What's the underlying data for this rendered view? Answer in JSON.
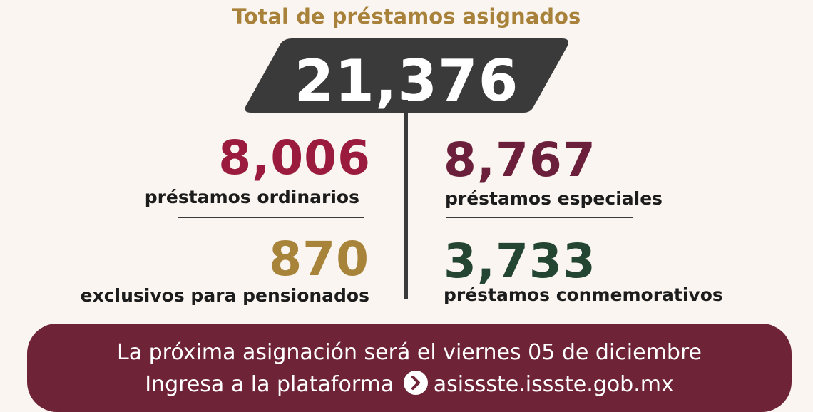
{
  "title": "Total de préstamos asignados",
  "total": "21,376",
  "items": {
    "ordinarios": {
      "value": "8,006",
      "label": "préstamos ordinarios",
      "color": "#9a1b3e"
    },
    "especiales": {
      "value": "8,767",
      "label": "préstamos especiales",
      "color": "#6b1f3a"
    },
    "pensionados": {
      "value": "870",
      "label": "exclusivos para pensionados",
      "color": "#a8843a"
    },
    "conmemorativos": {
      "value": "3,733",
      "label": "préstamos conmemorativos",
      "color": "#244532"
    }
  },
  "banner": {
    "line1": "La próxima asignación será el viernes 05 de diciembre",
    "line2_prefix": "Ingresa a la plataforma",
    "url": "asissste.issste.gob.mx",
    "arrow_icon": "chevron-right-icon",
    "color": "#6e2337"
  }
}
